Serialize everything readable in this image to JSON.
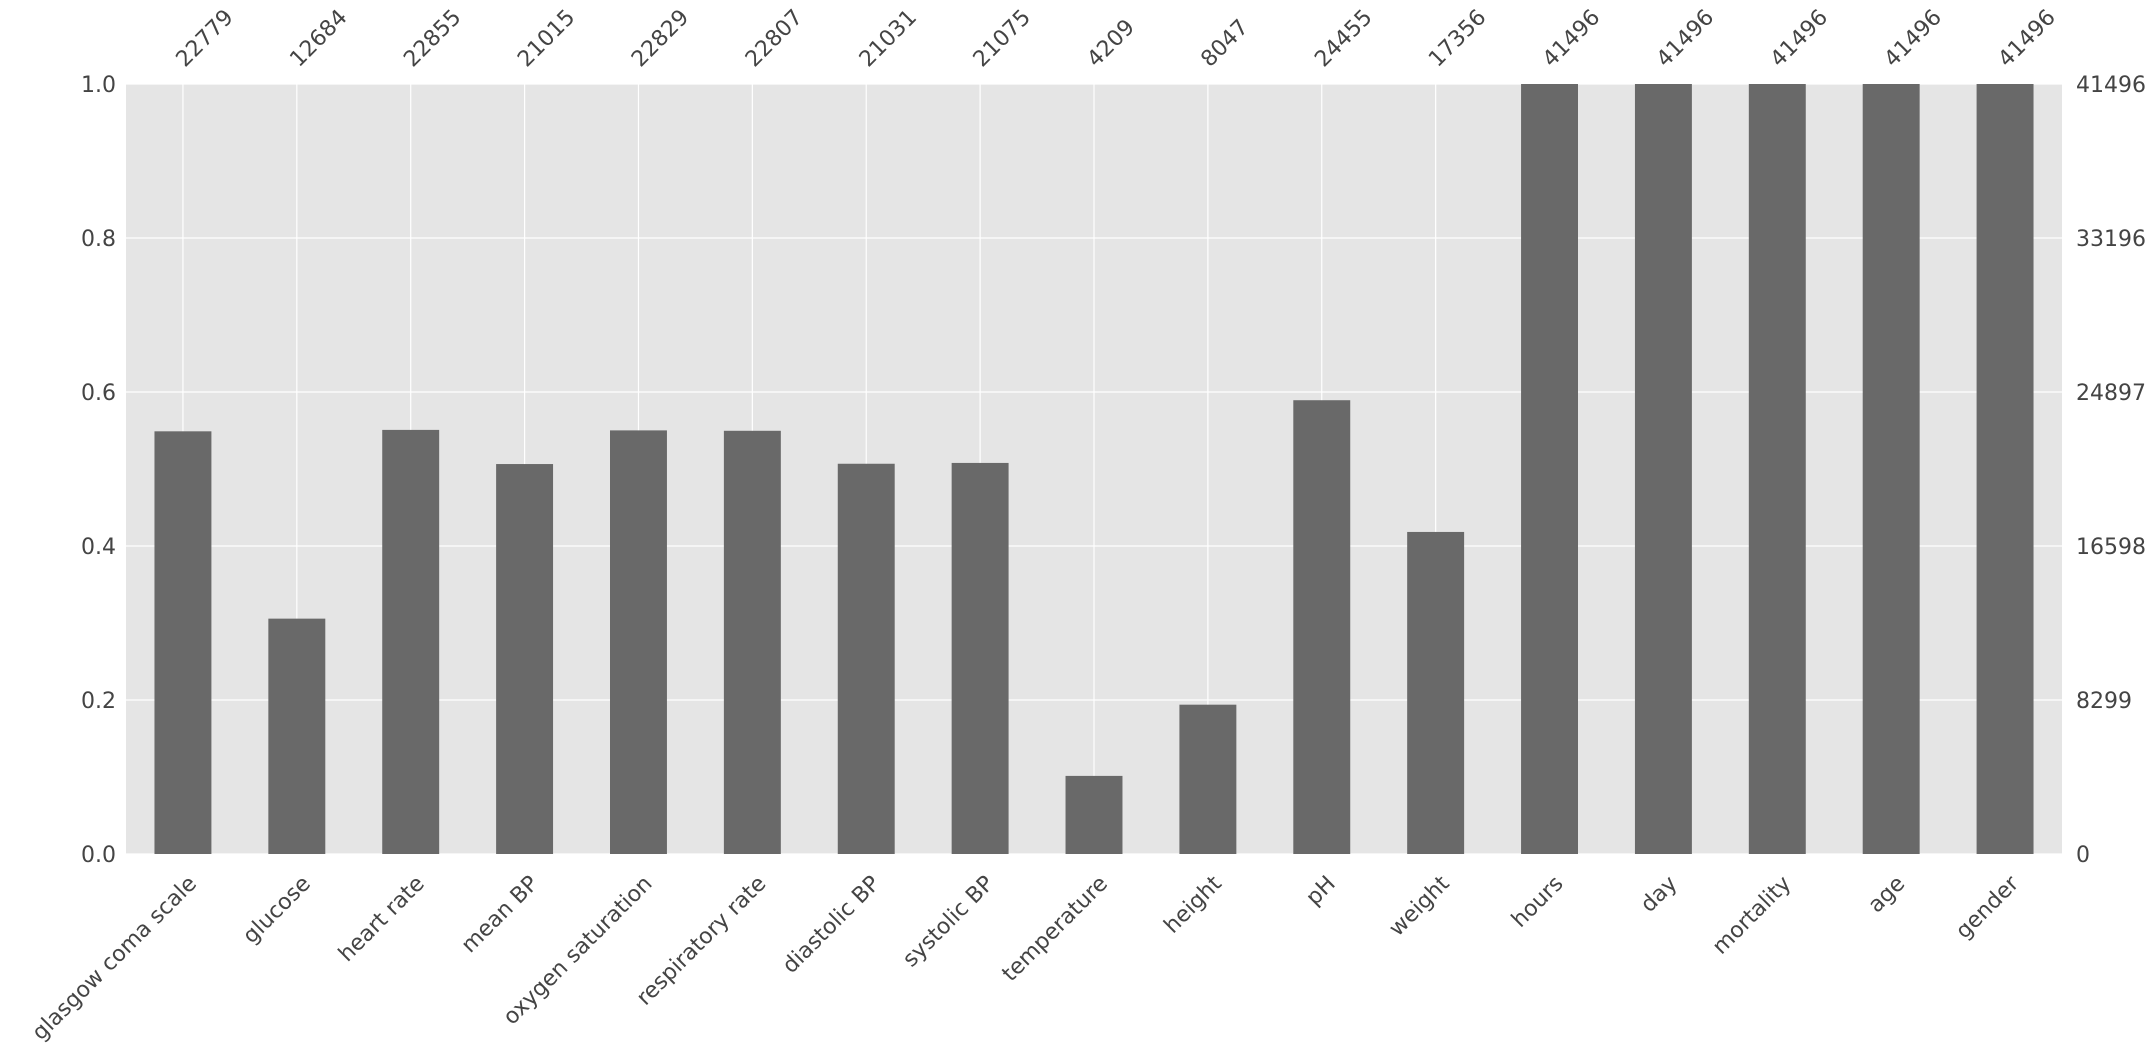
{
  "chart_data": {
    "type": "bar",
    "title": "",
    "xlabel": "",
    "ylabel": "",
    "ylim": [
      0,
      1
    ],
    "grid": true,
    "categories": [
      "glasgow coma scale",
      "glucose",
      "heart rate",
      "mean BP",
      "oxygen saturation",
      "respiratory rate",
      "diastolic BP",
      "systolic BP",
      "temperature",
      "height",
      "pH",
      "weight",
      "hours",
      "day",
      "mortality",
      "age",
      "gender"
    ],
    "counts": [
      22779,
      12684,
      22855,
      21015,
      22829,
      22807,
      21031,
      21075,
      4209,
      8047,
      24455,
      17356,
      41496,
      41496,
      41496,
      41496,
      41496
    ],
    "total": 41496,
    "left_axis_ticks": [
      "0.0",
      "0.2",
      "0.4",
      "0.6",
      "0.8",
      "1.0"
    ],
    "right_axis_ticks": [
      "0",
      "8299",
      "16598",
      "24897",
      "33196",
      "41496"
    ],
    "colors": {
      "bar": "#696969",
      "background": "#e5e5e5",
      "grid": "#ffffff",
      "text": "#444444"
    }
  }
}
